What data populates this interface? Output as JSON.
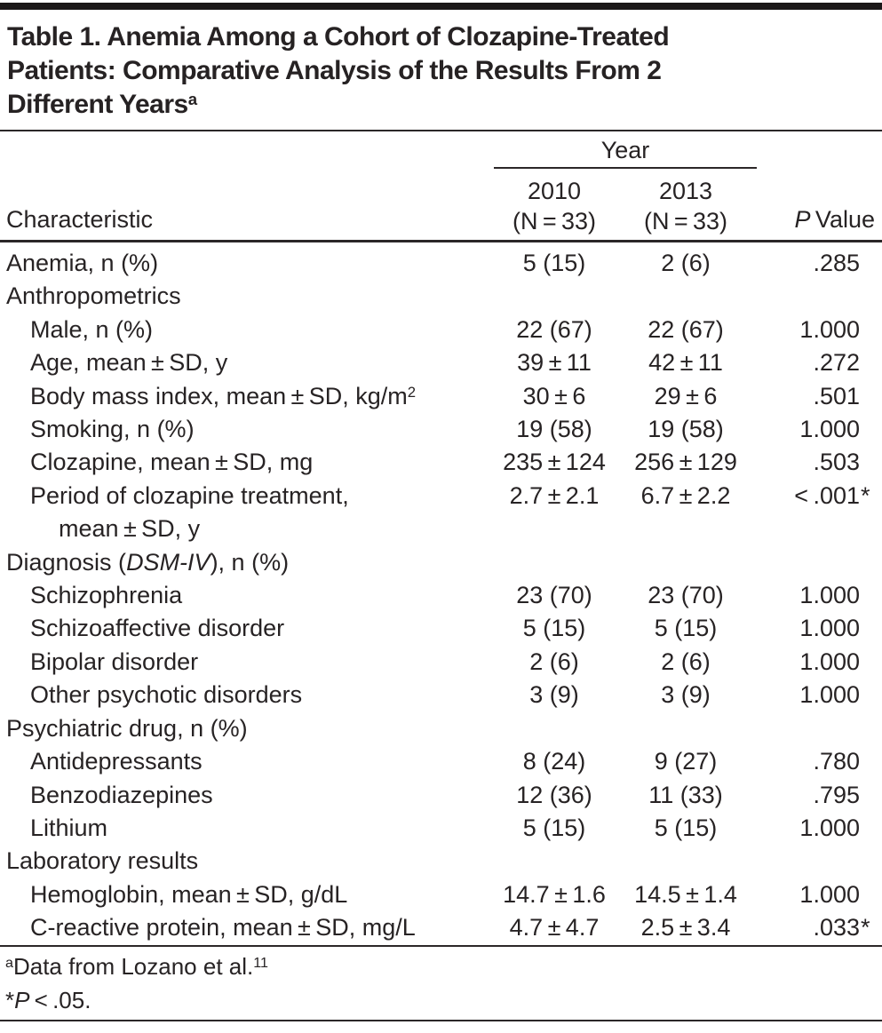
{
  "title": {
    "line1": "Table 1. Anemia Among a Cohort of Clozapine-Treated",
    "line2": "Patients: Comparative Analysis of the Results From 2",
    "line3": "Different Years",
    "footnote_marker": "a"
  },
  "header": {
    "year_label": "Year",
    "characteristic_label": "Characteristic",
    "col2010": {
      "year": "2010",
      "n": "(N = 33)"
    },
    "col2013": {
      "year": "2013",
      "n": "(N = 33)"
    },
    "pvalue_label": [
      {
        "text": "P",
        "italic": true
      },
      {
        "text": " Value"
      }
    ]
  },
  "table": {
    "significance_marker": "*",
    "rows": [
      {
        "label": [
          {
            "text": "Anemia, n (%)"
          }
        ],
        "c2010": "5 (15)",
        "c2013": "2 (6)",
        "p": ".285"
      },
      {
        "label": [
          {
            "text": "Anthropometrics"
          }
        ]
      },
      {
        "indent": true,
        "label": [
          {
            "text": "Male, n (%)"
          }
        ],
        "c2010": "22 (67)",
        "c2013": "22 (67)",
        "p": "1.000"
      },
      {
        "indent": true,
        "label": [
          {
            "text": "Age, mean ± SD, y"
          }
        ],
        "c2010": "39 ± 11",
        "c2013": "42 ± 11",
        "p": ".272"
      },
      {
        "indent": true,
        "label": [
          {
            "text": "Body mass index, mean ± SD, kg/m"
          },
          {
            "text": "2",
            "sup": true
          }
        ],
        "c2010": "30 ± 6",
        "c2013": "29 ± 6",
        "p": ".501"
      },
      {
        "indent": true,
        "label": [
          {
            "text": "Smoking, n (%)"
          }
        ],
        "c2010": "19 (58)",
        "c2013": "19 (58)",
        "p": "1.000"
      },
      {
        "indent": true,
        "label": [
          {
            "text": "Clozapine, mean ± SD, mg"
          }
        ],
        "c2010": "235 ± 124",
        "c2013": "256 ± 129",
        "p": ".503"
      },
      {
        "indent": true,
        "label": [
          {
            "text": "Period of clozapine treatment,"
          }
        ],
        "label2": [
          {
            "text": "mean ± SD, y"
          }
        ],
        "c2010": "2.7 ± 2.1",
        "c2013": "6.7 ± 2.2",
        "p": "< .001",
        "star": true
      },
      {
        "label": [
          {
            "text": "Diagnosis ("
          },
          {
            "text": "DSM-IV",
            "italic": true
          },
          {
            "text": "), n (%)"
          }
        ]
      },
      {
        "indent": true,
        "label": [
          {
            "text": "Schizophrenia"
          }
        ],
        "c2010": "23 (70)",
        "c2013": "23 (70)",
        "p": "1.000"
      },
      {
        "indent": true,
        "label": [
          {
            "text": "Schizoaffective disorder"
          }
        ],
        "c2010": "5 (15)",
        "c2013": "5 (15)",
        "p": "1.000"
      },
      {
        "indent": true,
        "label": [
          {
            "text": "Bipolar disorder"
          }
        ],
        "c2010": "2 (6)",
        "c2013": "2 (6)",
        "p": "1.000"
      },
      {
        "indent": true,
        "label": [
          {
            "text": "Other psychotic disorders"
          }
        ],
        "c2010": "3 (9)",
        "c2013": "3 (9)",
        "p": "1.000"
      },
      {
        "label": [
          {
            "text": "Psychiatric drug, n (%)"
          }
        ]
      },
      {
        "indent": true,
        "label": [
          {
            "text": "Antidepressants"
          }
        ],
        "c2010": "8 (24)",
        "c2013": "9 (27)",
        "p": ".780"
      },
      {
        "indent": true,
        "label": [
          {
            "text": "Benzodiazepines"
          }
        ],
        "c2010": "12 (36)",
        "c2013": "11 (33)",
        "p": ".795"
      },
      {
        "indent": true,
        "label": [
          {
            "text": "Lithium"
          }
        ],
        "c2010": "5 (15)",
        "c2013": "5 (15)",
        "p": "1.000"
      },
      {
        "label": [
          {
            "text": "Laboratory results"
          }
        ]
      },
      {
        "indent": true,
        "label": [
          {
            "text": "Hemoglobin, mean ± SD, g/dL"
          }
        ],
        "c2010": "14.7 ± 1.6",
        "c2013": "14.5 ± 1.4",
        "p": "1.000"
      },
      {
        "indent": true,
        "label": [
          {
            "text": "C-reactive protein, mean ± SD, mg/L"
          }
        ],
        "c2010": "4.7 ± 4.7",
        "c2013": "2.5 ± 3.4",
        "p": ".033",
        "star": true
      }
    ]
  },
  "footnotes": [
    {
      "parts": [
        {
          "text": "a",
          "sup": true
        },
        {
          "text": "Data from Lozano et al."
        },
        {
          "text": "11",
          "sup": true
        }
      ]
    },
    {
      "parts": [
        {
          "text": "*"
        },
        {
          "text": "P",
          "italic": true
        },
        {
          "text": " < .05."
        }
      ]
    }
  ]
}
